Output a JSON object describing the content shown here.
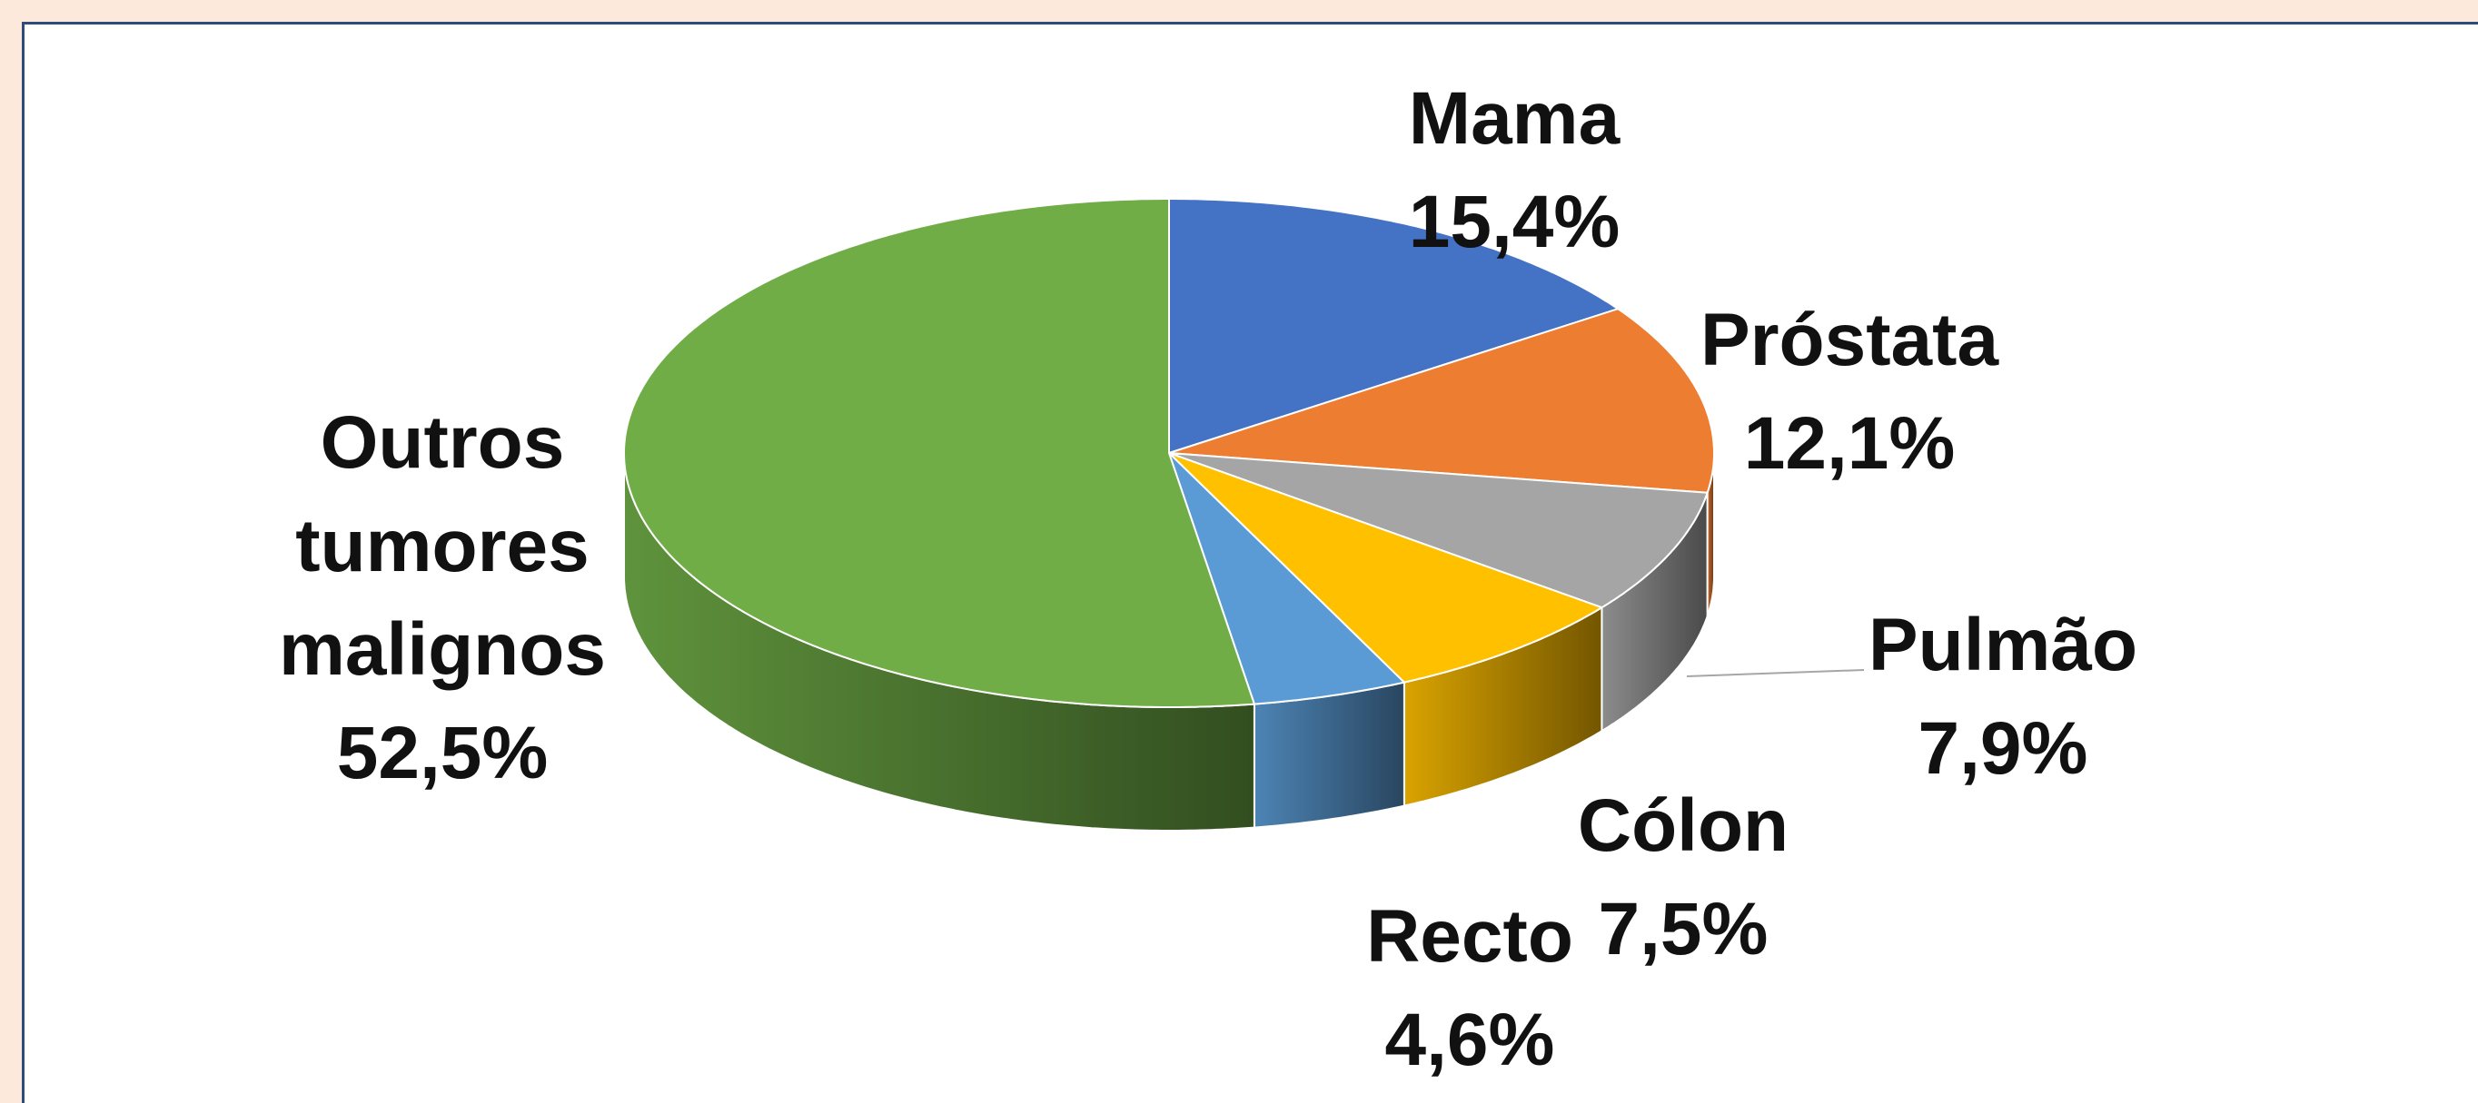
{
  "chart_data": {
    "type": "pie3d",
    "categories": [
      "Mama",
      "Próstata",
      "Pulmão",
      "Cólon",
      "Recto",
      "Outros tumores malignos"
    ],
    "values": [
      15.4,
      12.1,
      7.9,
      7.5,
      4.6,
      52.5
    ],
    "value_labels": [
      "15,4%",
      "12,1%",
      "7,9%",
      "7,5%",
      "4,6%",
      "52,5%"
    ],
    "colors": [
      "#4472c4",
      "#ed7d31",
      "#a5a5a5",
      "#ffc000",
      "#5b9bd5",
      "#70ad47"
    ]
  }
}
